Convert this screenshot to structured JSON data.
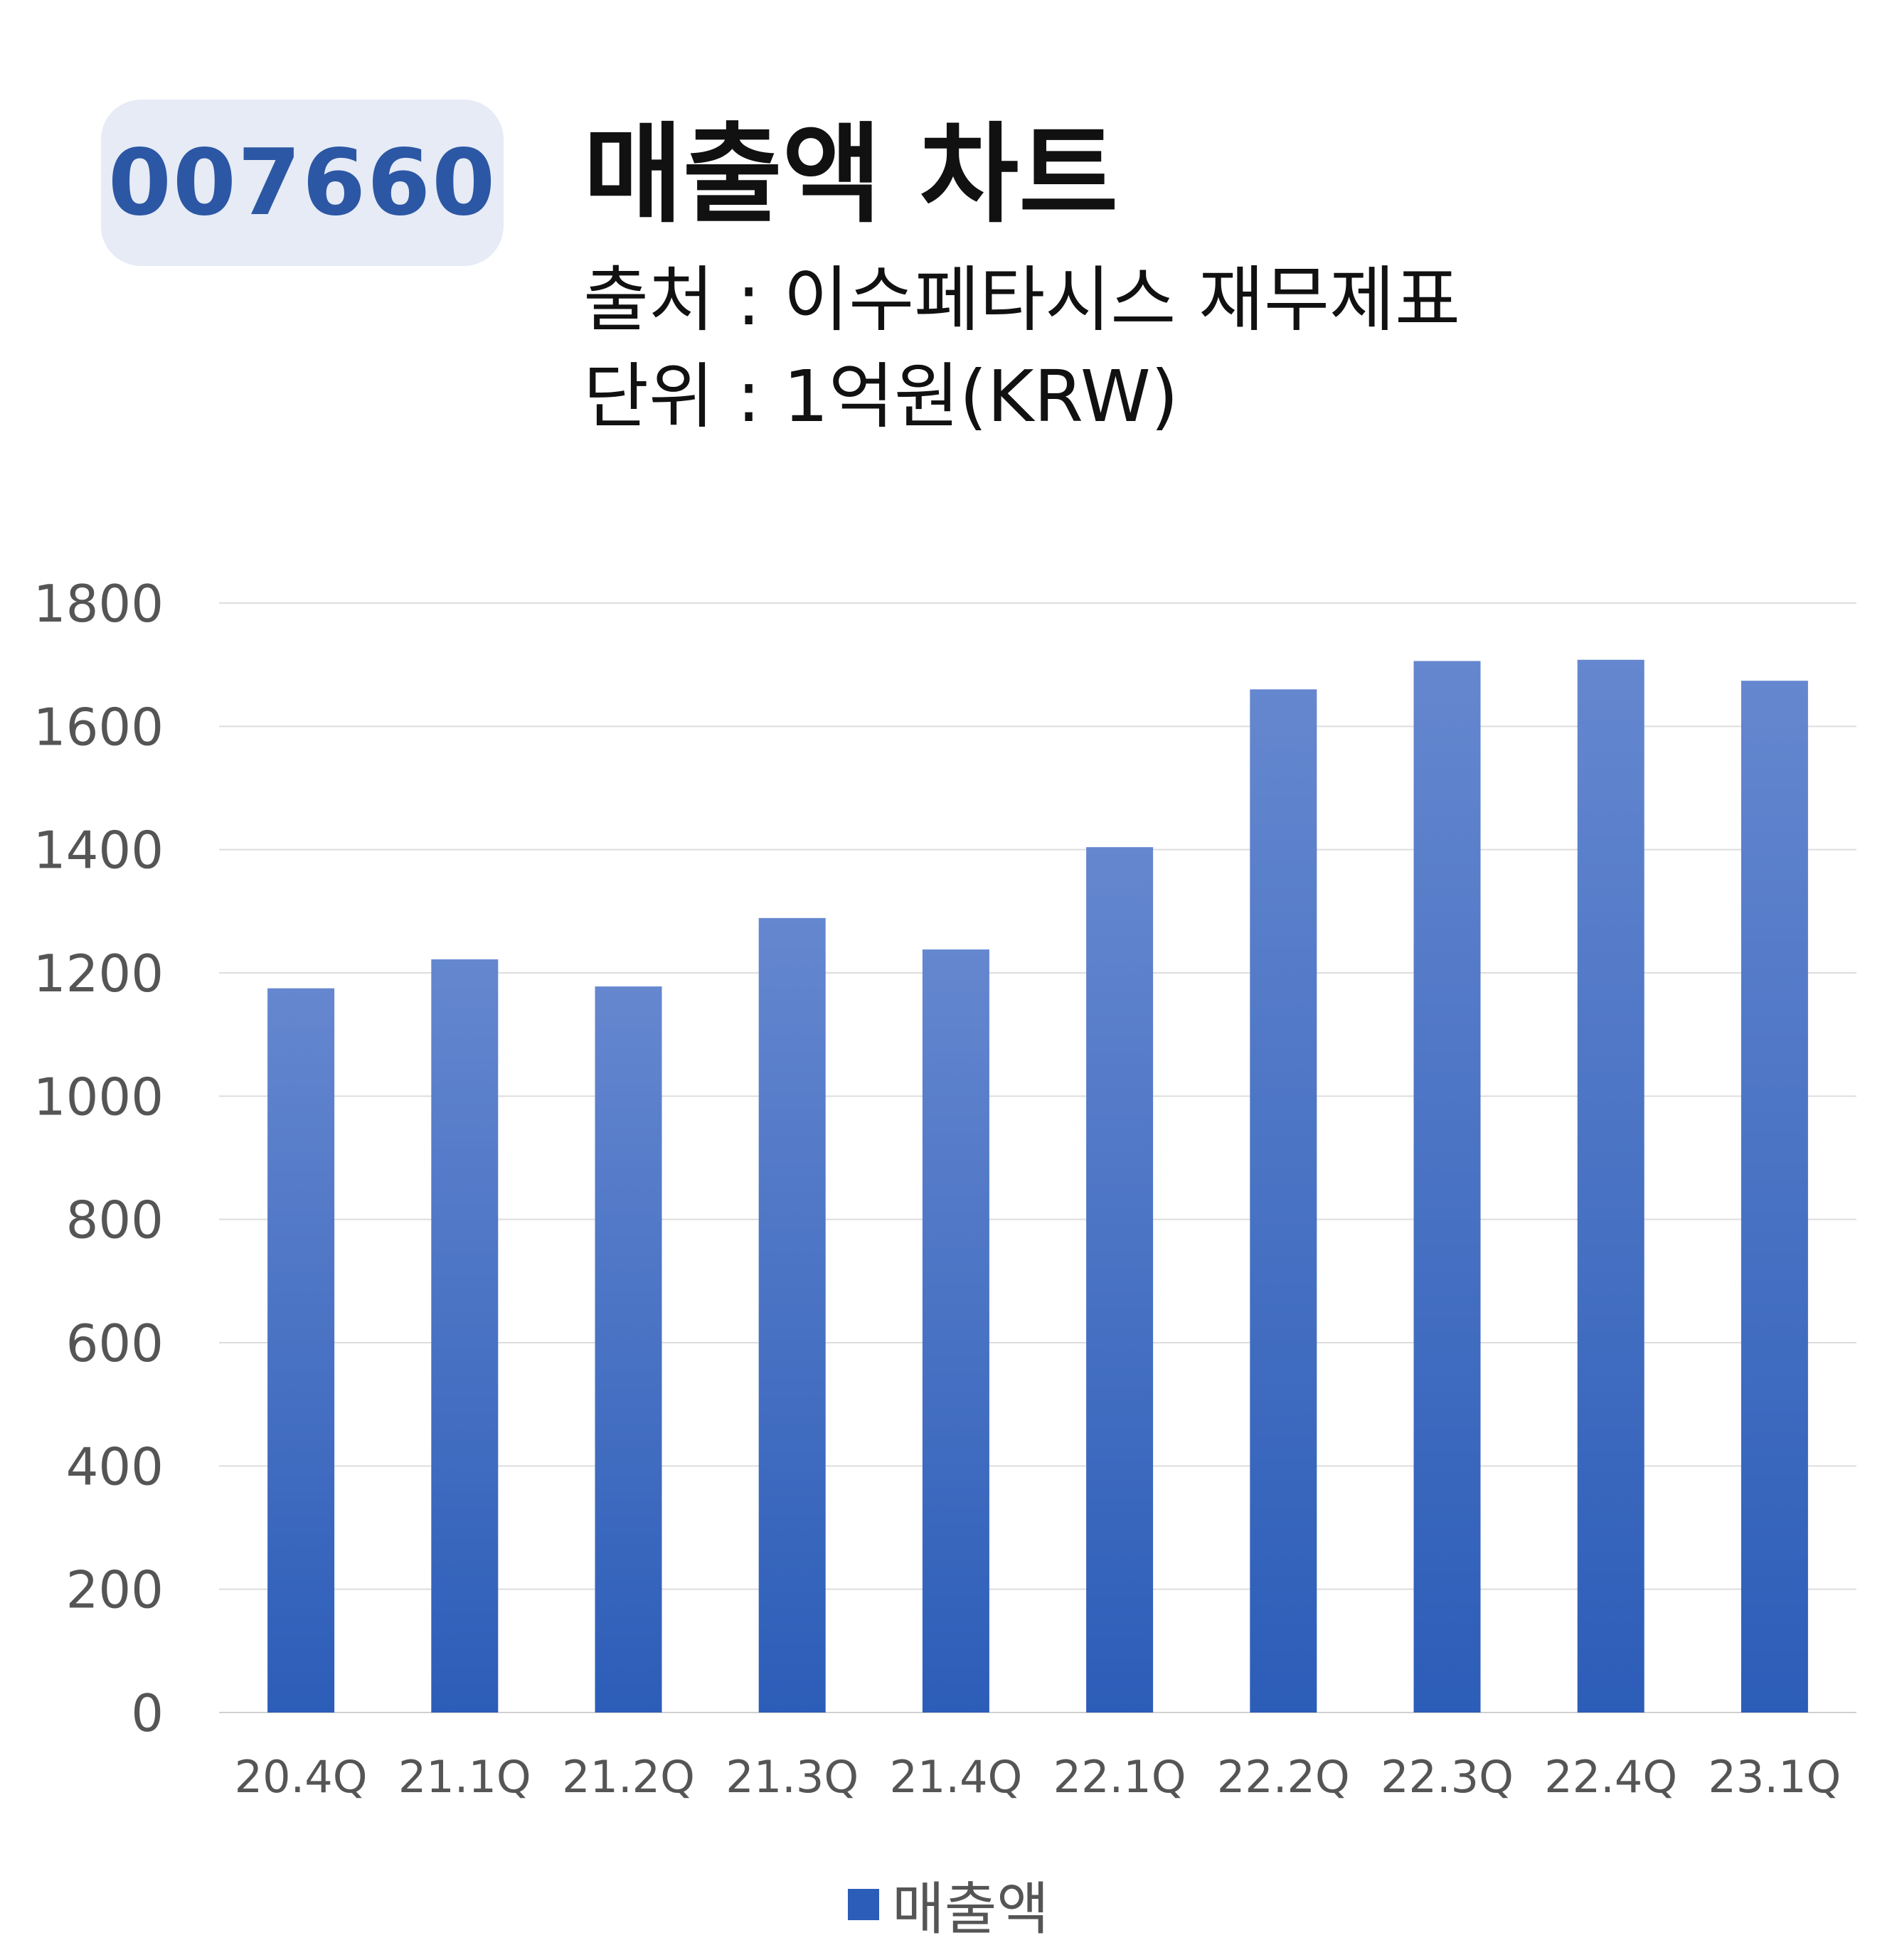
{
  "header": {
    "code": "007660",
    "title": "매출액 차트",
    "source": "출처 : 이수페타시스 재무제표",
    "unit": "단위 : 1억원(KRW)"
  },
  "colors": {
    "bar_top": "#6587cf",
    "bar_bottom": "#2c5db8",
    "badge_bg": "#e6ebf6",
    "badge_text": "#2c57a4",
    "grid": "#dddddd"
  },
  "chart_data": {
    "type": "bar",
    "categories": [
      "20.4Q",
      "21.1Q",
      "21.2Q",
      "21.3Q",
      "21.4Q",
      "22.1Q",
      "22.2Q",
      "22.3Q",
      "22.4Q",
      "23.1Q"
    ],
    "series": [
      {
        "name": "매출액",
        "values": [
          1175,
          1222,
          1178,
          1289,
          1238,
          1404,
          1660,
          1706,
          1708,
          1674
        ]
      }
    ],
    "ylim": [
      0,
      1800
    ],
    "yticks": [
      0,
      200,
      400,
      600,
      800,
      1000,
      1200,
      1400,
      1600,
      1800
    ],
    "grid": true,
    "legend_position": "bottom-center"
  }
}
